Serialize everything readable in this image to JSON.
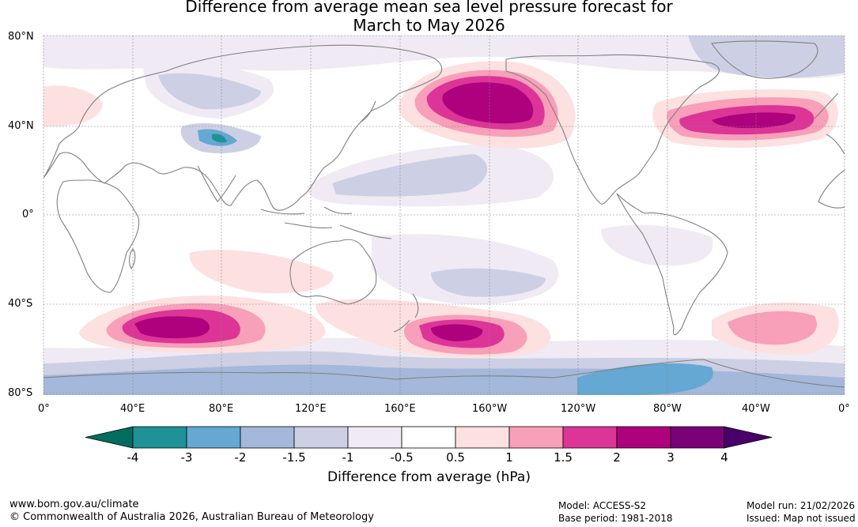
{
  "title": {
    "line1": "Difference from average mean sea level pressure forecast for",
    "line2": "March to May 2026"
  },
  "map": {
    "lat_labels": [
      "80°N",
      "40°N",
      "0°",
      "40°S",
      "80°S"
    ],
    "lon_labels": [
      "0°",
      "40°E",
      "80°E",
      "120°E",
      "160°E",
      "160°W",
      "120°W",
      "80°W",
      "40°W",
      "0°"
    ]
  },
  "colorbar": {
    "levels": [
      "-4",
      "-3",
      "-2",
      "-1.5",
      "-1",
      "-0.5",
      "0.5",
      "1",
      "1.5",
      "2",
      "3",
      "4"
    ],
    "colors": {
      "below_min": "#006d5f",
      "bins": [
        "#1e9296",
        "#64a8d3",
        "#a3b8da",
        "#cdcfe4",
        "#efeaf4",
        "#ffffff",
        "#fde0e0",
        "#f89fba",
        "#dd3497",
        "#ae017e",
        "#7a0177"
      ],
      "above_max": "#49006a"
    },
    "label": "Difference from average (hPa)"
  },
  "footer": {
    "site": "www.bom.gov.au/climate",
    "copyright": "© Commonwealth of Australia 2026, Australian Bureau of Meteorology",
    "model": "Model: ACCESS-S2",
    "base_period": "Base period: 1981-2018",
    "model_run": "Model run: 21/02/2026",
    "issued": "Issued: Map not issued"
  }
}
